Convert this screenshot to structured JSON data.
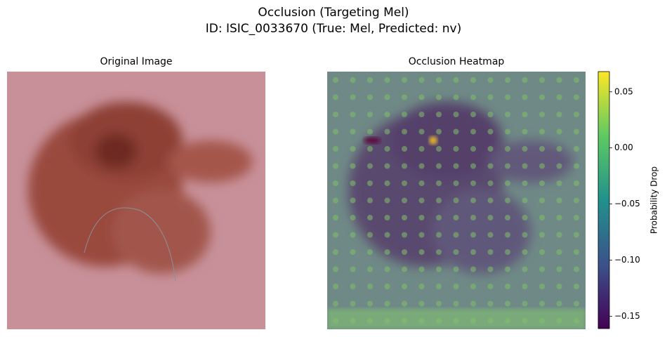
{
  "title": [
    "Occlusion (Targeting Mel)",
    "ID: ISIC_0033670 (True: Mel, Predicted: nv)"
  ],
  "panels": [
    {
      "title": "Original Image"
    },
    {
      "title": "Occlusion Heatmap"
    }
  ],
  "colorbar": {
    "label": "Probability Drop",
    "lim": [
      -0.161,
      0.068
    ],
    "ticks": [
      {
        "value": -0.15,
        "label": "−0.15"
      },
      {
        "value": -0.1,
        "label": "−0.10"
      },
      {
        "value": -0.05,
        "label": "−0.05"
      },
      {
        "value": 0,
        "label": "0.00"
      },
      0.05
    ]
  }
}
